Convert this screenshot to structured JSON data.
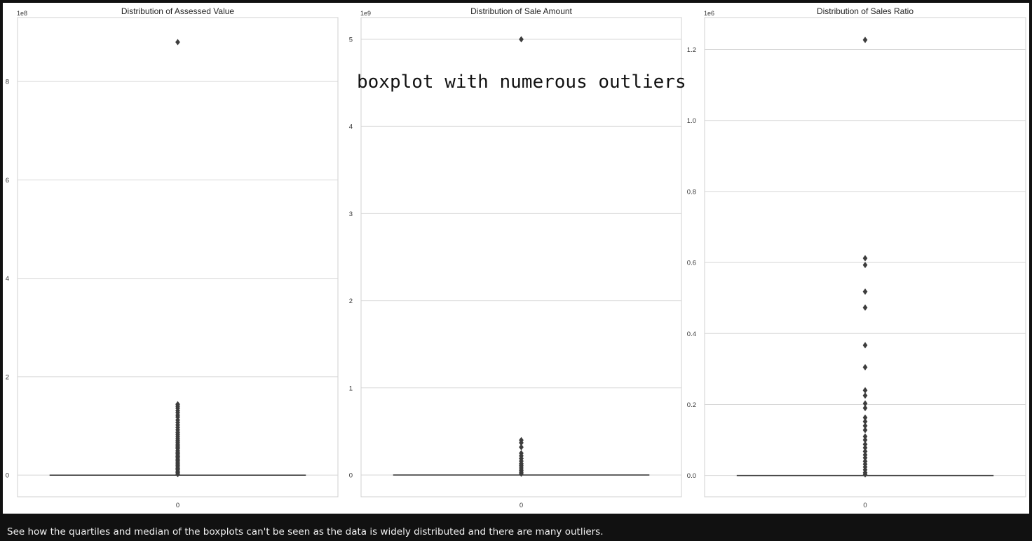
{
  "figure": {
    "overlay_label": "boxplot with numerous outliers",
    "caption": "See how the quartiles and median of the boxplots can't be seen as the data is widely distributed and there are many outliers."
  },
  "chart_data": [
    {
      "type": "boxplot",
      "title": "Distribution of Assessed Value",
      "categories": [
        "0"
      ],
      "scale_label": "1e8",
      "yticks": [
        0,
        2,
        4,
        6,
        8
      ],
      "ytick_labels": [
        "0",
        "2",
        "4",
        "6",
        "8"
      ],
      "ylim": [
        -0.44,
        9.3
      ],
      "grid": true,
      "box": {
        "q1": 0.0,
        "median": 0.0,
        "q3": 0.0
      },
      "outliers": [
        8.8,
        1.44,
        1.4,
        1.36,
        1.31,
        1.27,
        1.22,
        1.18,
        1.12,
        1.07,
        1.02,
        0.97,
        0.92,
        0.87,
        0.83,
        0.79,
        0.75,
        0.71,
        0.67,
        0.63,
        0.6,
        0.57,
        0.54,
        0.5,
        0.47,
        0.44,
        0.41,
        0.38,
        0.35,
        0.32,
        0.29,
        0.26,
        0.23,
        0.2,
        0.17,
        0.14,
        0.11,
        0.08,
        0.05,
        0.02
      ]
    },
    {
      "type": "boxplot",
      "title": "Distribution of Sale Amount",
      "categories": [
        "0"
      ],
      "scale_label": "1e9",
      "yticks": [
        0,
        1,
        2,
        3,
        4,
        5
      ],
      "ytick_labels": [
        "0",
        "1",
        "2",
        "3",
        "4",
        "5"
      ],
      "ylim": [
        -0.25,
        5.25
      ],
      "grid": true,
      "box": {
        "q1": 0.0,
        "median": 0.0,
        "q3": 0.0
      },
      "outliers": [
        5.0,
        0.4,
        0.37,
        0.32,
        0.25,
        0.22,
        0.19,
        0.16,
        0.13,
        0.11,
        0.09,
        0.07,
        0.05,
        0.03,
        0.015
      ]
    },
    {
      "type": "boxplot",
      "title": "Distribution of Sales Ratio",
      "categories": [
        "0"
      ],
      "scale_label": "1e6",
      "yticks": [
        0.0,
        0.2,
        0.4,
        0.6,
        0.8,
        1.0,
        1.2
      ],
      "ytick_labels": [
        "0.0",
        "0.2",
        "0.4",
        "0.6",
        "0.8",
        "1.0",
        "1.2"
      ],
      "ylim": [
        -0.06,
        1.29
      ],
      "grid": true,
      "box": {
        "q1": 0.0,
        "median": 0.0,
        "q3": 0.0
      },
      "outliers": [
        1.227,
        0.612,
        0.593,
        0.518,
        0.473,
        0.367,
        0.305,
        0.24,
        0.225,
        0.203,
        0.19,
        0.163,
        0.152,
        0.14,
        0.128,
        0.11,
        0.1,
        0.088,
        0.078,
        0.068,
        0.058,
        0.05,
        0.04,
        0.032,
        0.024,
        0.016,
        0.008,
        0.003
      ]
    }
  ]
}
